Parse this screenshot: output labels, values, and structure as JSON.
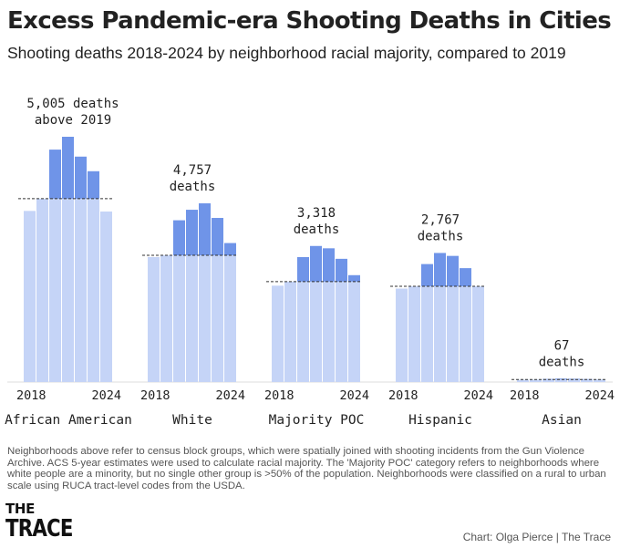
{
  "title": "Excess Pandemic-era Shooting Deaths in Cities",
  "subtitle": "Shooting deaths 2018-2024 by neighborhood racial majority, compared to 2019",
  "notes": "Neighborhoods above refer to census block groups, which were spatially joined with shooting incidents from the Gun Violence Archive. ACS 5-year estimates were used to calculate racial majority.  The 'Majority POC' category refers to neighborhoods where white people are a minority, but no single other group is >50% of the population.  Neighborhoods were classified on a rural to urban scale using RUCA tract-level codes from the USDA.",
  "logo": {
    "line1": "THE",
    "line2": "TRACE"
  },
  "credit": "Chart: Olga Pierce | The Trace",
  "colors": {
    "baseline_bar": "#c5d4f7",
    "excess_bar": "#6f94e8",
    "reference_line": "#333333",
    "text": "#222222"
  },
  "chart_data": {
    "type": "bar",
    "x": [
      2018,
      2019,
      2020,
      2021,
      2022,
      2023,
      2024
    ],
    "x_tick_labels": [
      "2018",
      "2024"
    ],
    "ylim": [
      0,
      4200
    ],
    "baseline_year": 2019,
    "groups": [
      {
        "name": "African American",
        "annotation": "5,005 deaths above 2019",
        "annotation_lines": [
          "5,005 deaths",
          "above 2019"
        ],
        "values": [
          2930,
          3140,
          3980,
          4200,
          3860,
          3610,
          2920
        ]
      },
      {
        "name": "White",
        "annotation": "4,757 deaths",
        "annotation_lines": [
          "4,757",
          "deaths"
        ],
        "values": [
          2140,
          2170,
          2770,
          2950,
          3060,
          2810,
          2380
        ]
      },
      {
        "name": "Majority POC",
        "annotation": "3,318 deaths",
        "annotation_lines": [
          "3,318",
          "deaths"
        ],
        "values": [
          1650,
          1720,
          2140,
          2330,
          2290,
          2110,
          1830
        ]
      },
      {
        "name": "Hispanic",
        "annotation": "2,767 deaths",
        "annotation_lines": [
          "2,767",
          "deaths"
        ],
        "values": [
          1600,
          1640,
          2020,
          2210,
          2160,
          1950,
          1640
        ]
      },
      {
        "name": "Asian",
        "annotation": "67 deaths",
        "annotation_lines": [
          "67",
          "deaths"
        ],
        "values": [
          40,
          42,
          52,
          58,
          55,
          50,
          44
        ]
      }
    ]
  }
}
